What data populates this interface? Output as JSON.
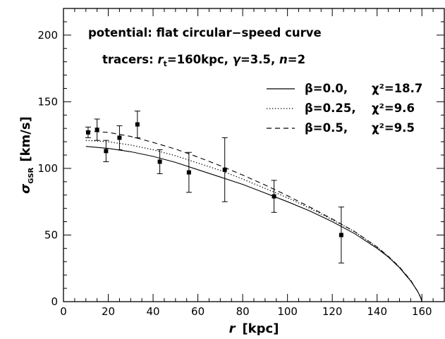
{
  "chart_data": {
    "type": "line",
    "xlabel": {
      "symbol": "r",
      "unit": "[kpc]"
    },
    "ylabel": {
      "symbol": "σ",
      "subscript": "GSR",
      "unit": "[km/s]"
    },
    "xlim": [
      0,
      170
    ],
    "ylim": [
      0,
      220
    ],
    "xticks": [
      0,
      20,
      40,
      60,
      80,
      100,
      120,
      140,
      160
    ],
    "yticks": [
      0,
      50,
      100,
      150,
      200
    ],
    "grid": false,
    "annotations": [
      "potential: flat circular−speed curve",
      {
        "prefix": "tracers: ",
        "rt_symbol": "r",
        "rt_sub": "t",
        "rt_val": "=160kpc, ",
        "gamma_symbol": "γ",
        "gamma_val": "=3.5, ",
        "n_symbol": "n",
        "n_val": "=2"
      }
    ],
    "legend_placement": "top-right",
    "series": [
      {
        "name": "β=0.0,",
        "chi2_label": "χ²=18.7",
        "style": "solid",
        "x": [
          10,
          20,
          30,
          40,
          50,
          60,
          70,
          80,
          90,
          100,
          110,
          120,
          130,
          140,
          145,
          150,
          155,
          158,
          159.5,
          160
        ],
        "y": [
          116.5,
          115,
          112.5,
          109,
          104.5,
          99,
          93.5,
          88,
          81.5,
          75,
          68,
          60,
          51,
          40,
          33.5,
          25.5,
          15.5,
          8,
          3,
          0
        ]
      },
      {
        "name": "β=0.25,",
        "chi2_label": "χ²=9.6",
        "style": "dotted",
        "x": [
          10,
          20,
          30,
          40,
          50,
          60,
          70,
          80,
          90,
          100,
          110,
          120,
          130,
          140,
          145,
          150,
          155,
          158,
          159.5,
          160
        ],
        "y": [
          121,
          120,
          117.5,
          114,
          109.5,
          104,
          98.5,
          92,
          85,
          78,
          70,
          61.5,
          52.5,
          41,
          34,
          26,
          16,
          8,
          3,
          0
        ]
      },
      {
        "name": "β=0.5,",
        "chi2_label": "χ²=9.5",
        "style": "dashed",
        "x": [
          10,
          20,
          30,
          40,
          50,
          60,
          70,
          80,
          90,
          100,
          110,
          120,
          130,
          140,
          145,
          150,
          155,
          158,
          159.5,
          160
        ],
        "y": [
          128,
          127,
          124,
          119.5,
          114.5,
          108.5,
          102,
          95,
          87.5,
          79.5,
          71,
          62,
          52.5,
          41,
          34,
          26,
          16,
          8,
          3,
          0
        ]
      }
    ],
    "observations": [
      {
        "x": 11,
        "y": 127,
        "err": 4
      },
      {
        "x": 15,
        "y": 129,
        "err": 8
      },
      {
        "x": 19,
        "y": 113,
        "err": 8
      },
      {
        "x": 25,
        "y": 123,
        "err": 9
      },
      {
        "x": 33,
        "y": 133,
        "err": 10
      },
      {
        "x": 43,
        "y": 105,
        "err": 9
      },
      {
        "x": 56,
        "y": 97,
        "err": 15
      },
      {
        "x": 72,
        "y": 99,
        "err": 24
      },
      {
        "x": 94,
        "y": 79,
        "err": 12
      },
      {
        "x": 124,
        "y": 50,
        "err": 21
      }
    ]
  }
}
